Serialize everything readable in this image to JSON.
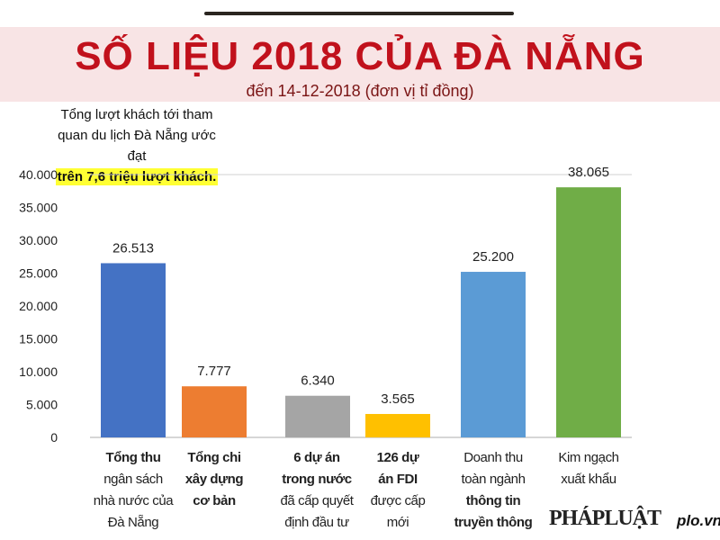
{
  "chart_data": {
    "type": "bar",
    "title": "SỐ LIỆU 2018 CỦA ĐÀ NẴNG",
    "subtitle": "đến 14-12-2018 (đơn vị tỉ đồng)",
    "ylim": [
      0,
      40000
    ],
    "yticks": [
      "0",
      "5.000",
      "10.000",
      "15.000",
      "20.000",
      "25.000",
      "30.000",
      "35.000",
      "40.000"
    ],
    "categories": [
      [
        {
          "t": "Tổng thu",
          "b": true
        },
        {
          "t": "ngân sách",
          "b": false
        },
        {
          "t": "nhà nước của",
          "b": false
        },
        {
          "t": "Đà Nẵng",
          "b": false
        }
      ],
      [
        {
          "t": "Tổng chi",
          "b": true
        },
        {
          "t": "xây dựng",
          "b": true
        },
        {
          "t": "cơ bản",
          "b": true
        }
      ],
      [
        {
          "t": "6 dự án",
          "b": true
        },
        {
          "t": "trong nước",
          "b": true
        },
        {
          "t": "đã cấp quyết",
          "b": false
        },
        {
          "t": "định đầu tư",
          "b": false
        }
      ],
      [
        {
          "t": "126 dự",
          "b": true
        },
        {
          "t": "án FDI",
          "b": true
        },
        {
          "t": "được cấp",
          "b": false
        },
        {
          "t": "mới",
          "b": false
        }
      ],
      [
        {
          "t": "Doanh thu",
          "b": false
        },
        {
          "t": "toàn ngành",
          "b": false
        },
        {
          "t": "thông tin",
          "b": true
        },
        {
          "t": "truyền thông",
          "b": true
        }
      ],
      [
        {
          "t": "Kim ngạch",
          "b": false
        },
        {
          "t": "xuất khẩu",
          "b": false
        }
      ]
    ],
    "values": [
      26513,
      7777,
      6340,
      3565,
      25200,
      38065
    ],
    "value_labels": [
      "26.513",
      "7.777",
      "6.340",
      "3.565",
      "25.200",
      "38.065"
    ],
    "colors": [
      "#4472c4",
      "#ed7d31",
      "#a5a5a5",
      "#ffc000",
      "#5b9bd5",
      "#70ad47"
    ],
    "grid": false
  },
  "note": {
    "line1": "Tổng lượt khách tới tham",
    "line2": "quan du lịch Đà Nẵng ước đạt",
    "highlight": "trên 7,6 triệu lượt khách."
  },
  "footer": {
    "logo": "PHÁPLUẬT",
    "site": "plo.vn"
  }
}
